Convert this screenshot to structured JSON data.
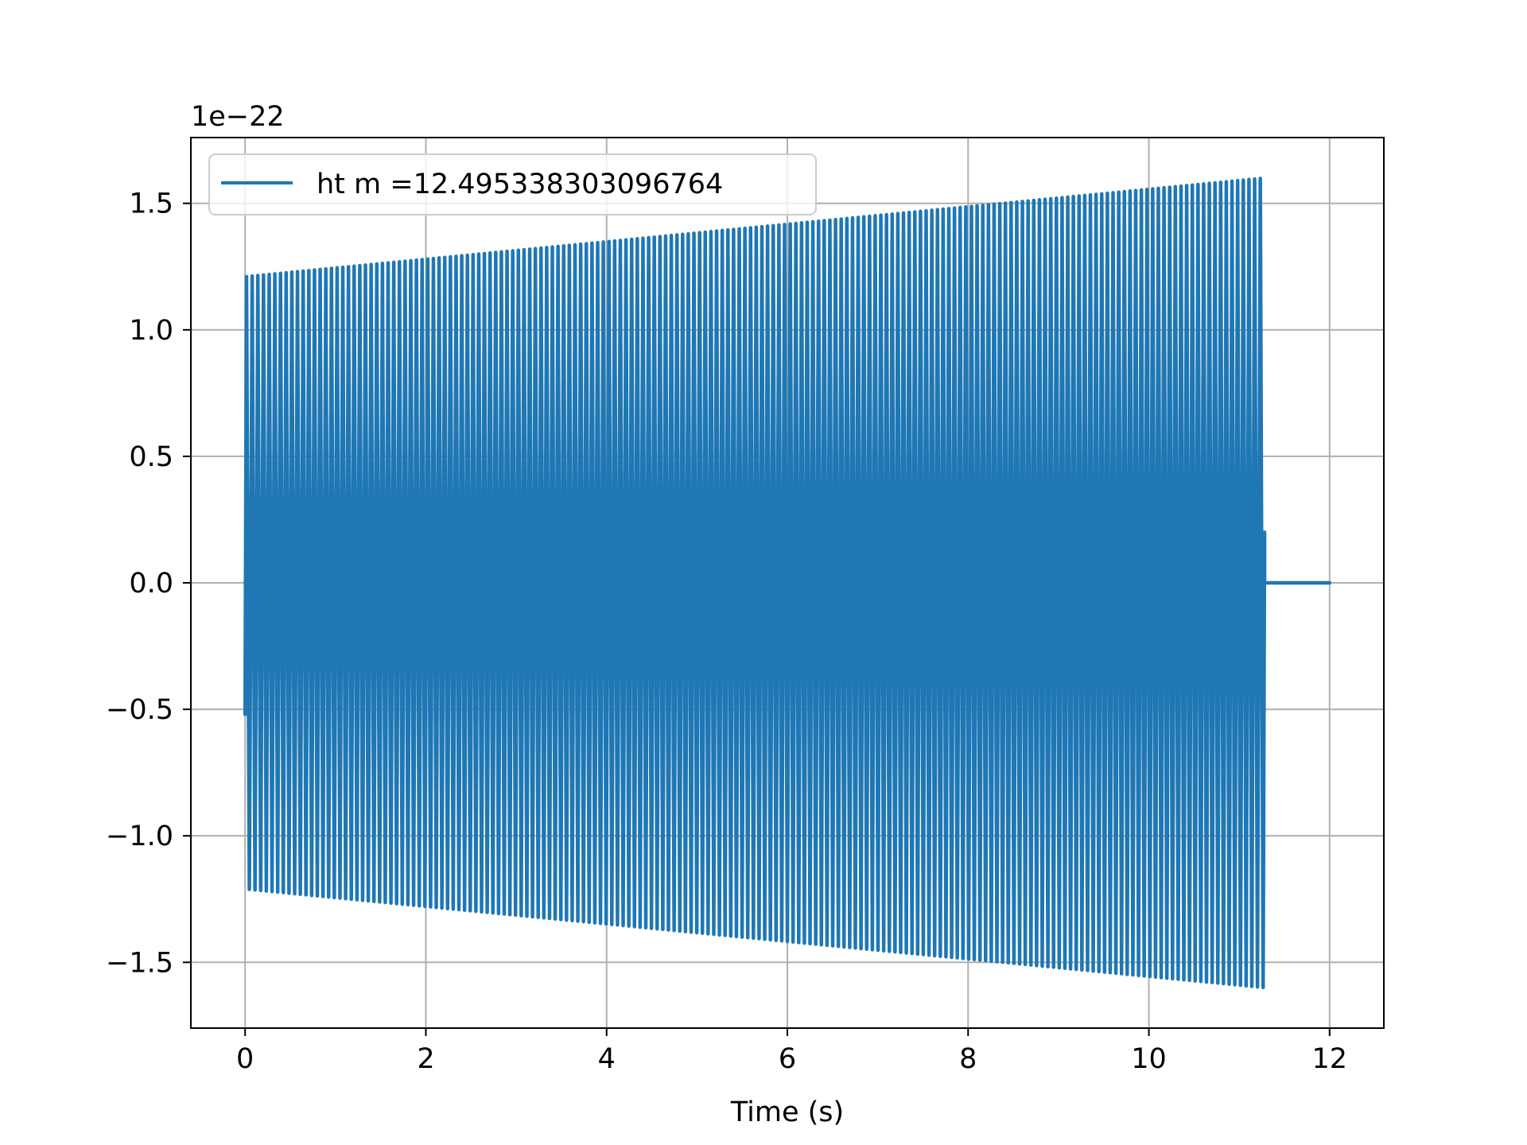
{
  "chart_data": {
    "type": "line",
    "title": "",
    "xlabel": "Time (s)",
    "ylabel": "",
    "y_offset_label": "1e−22",
    "xlim": [
      -0.6,
      12.6
    ],
    "ylim": [
      -1.76,
      1.76
    ],
    "x_ticks": [
      0,
      2,
      4,
      6,
      8,
      10,
      12
    ],
    "x_tick_labels": [
      "0",
      "2",
      "4",
      "6",
      "8",
      "10",
      "12"
    ],
    "y_ticks": [
      -1.5,
      -1.0,
      -0.5,
      0.0,
      0.5,
      1.0,
      1.5
    ],
    "y_tick_labels": [
      "−1.5",
      "−1.0",
      "−0.5",
      "0.0",
      "0.5",
      "1.0",
      "1.5"
    ],
    "grid": true,
    "legend_position": "upper-left",
    "series": [
      {
        "name": "ht m =12.495338303096764",
        "color": "#1f77b4",
        "waveform": {
          "signal_start": 0.0,
          "signal_end": 11.28,
          "amplitude_start": 1.21,
          "amplitude_end": 1.6,
          "start_value": -0.52,
          "cycles_visible": 180,
          "end_value": 0.2,
          "trail_end": 12.0,
          "trail_value": 0.0
        }
      }
    ]
  }
}
